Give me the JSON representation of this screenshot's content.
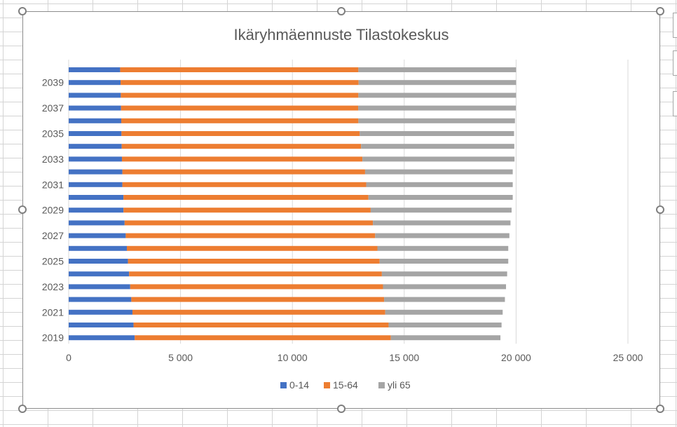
{
  "chart_data": {
    "type": "bar",
    "orientation": "horizontal",
    "stacked": true,
    "title": "Ikäryhmäennuste Tilastokeskus",
    "xlabel": "",
    "ylabel": "",
    "xlim": [
      0,
      25000
    ],
    "x_ticks": [
      0,
      5000,
      10000,
      15000,
      20000,
      25000
    ],
    "x_tick_labels": [
      "0",
      "5 000",
      "10 000",
      "15 000",
      "20 000",
      "25 000"
    ],
    "categories": [
      "2019",
      "2020",
      "2021",
      "2022",
      "2023",
      "2024",
      "2025",
      "2026",
      "2027",
      "2028",
      "2029",
      "2030",
      "2031",
      "2032",
      "2033",
      "2034",
      "2035",
      "2036",
      "2037",
      "2038",
      "2039",
      "2040"
    ],
    "category_labels": [
      "2019",
      "",
      "2021",
      "",
      "2023",
      "",
      "2025",
      "",
      "2027",
      "",
      "2029",
      "",
      "2031",
      "",
      "2033",
      "",
      "2035",
      "",
      "2037",
      "",
      "2039",
      ""
    ],
    "series": [
      {
        "name": "0-14",
        "color": "#4472c4",
        "values": [
          2950,
          2900,
          2850,
          2800,
          2750,
          2700,
          2650,
          2600,
          2550,
          2500,
          2450,
          2450,
          2400,
          2400,
          2380,
          2370,
          2360,
          2350,
          2340,
          2330,
          2320,
          2300
        ]
      },
      {
        "name": "15-64",
        "color": "#ed7d31",
        "values": [
          11450,
          11400,
          11300,
          11300,
          11300,
          11300,
          11250,
          11200,
          11150,
          11100,
          11050,
          10950,
          10900,
          10850,
          10750,
          10700,
          10650,
          10600,
          10600,
          10620,
          10640,
          10650
        ]
      },
      {
        "name": "yli 65",
        "color": "#a5a5a5",
        "values": [
          4900,
          5050,
          5250,
          5400,
          5500,
          5600,
          5750,
          5850,
          6000,
          6150,
          6300,
          6450,
          6550,
          6600,
          6800,
          6850,
          6900,
          7000,
          7050,
          7050,
          7040,
          7050
        ]
      }
    ],
    "legend_position": "bottom",
    "gridlines": "vertical"
  }
}
